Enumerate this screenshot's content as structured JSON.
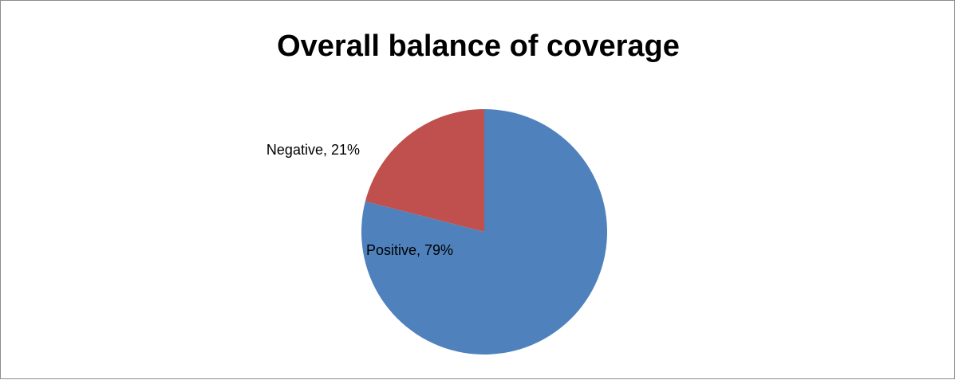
{
  "chart_data": {
    "type": "pie",
    "title": "Overall balance of coverage",
    "slices": [
      {
        "label": "Positive",
        "value": 79,
        "display": "Positive, 79%",
        "color": "#4f81bd"
      },
      {
        "label": "Negative",
        "value": 21,
        "display": "Negative, 21%",
        "color": "#c0504d"
      }
    ],
    "legend": "none"
  }
}
